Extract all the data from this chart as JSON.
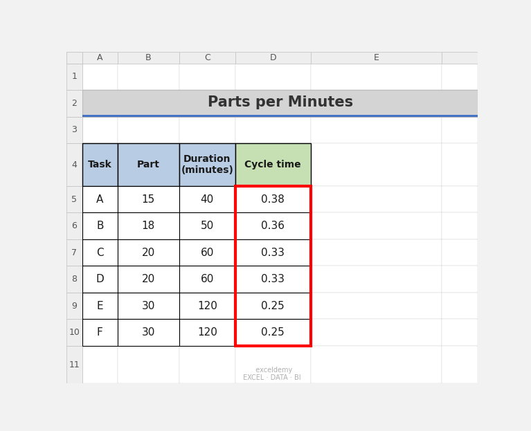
{
  "title": "Parts per Minutes",
  "headers": [
    "Task",
    "Part",
    "Duration\n(minutes)",
    "Cycle time"
  ],
  "rows": [
    [
      "A",
      "15",
      "40",
      "0.38"
    ],
    [
      "B",
      "18",
      "50",
      "0.36"
    ],
    [
      "C",
      "20",
      "60",
      "0.33"
    ],
    [
      "D",
      "20",
      "60",
      "0.33"
    ],
    [
      "E",
      "30",
      "120",
      "0.25"
    ],
    [
      "F",
      "30",
      "120",
      "0.25"
    ]
  ],
  "header_bg_blue": "#b8cce4",
  "header_bg_green": "#c6e0b4",
  "title_bg": "#d4d4d4",
  "red_border_color": "#ff0000",
  "col_header_bg": "#eeeeee",
  "col_header_border": "#c0c0c0",
  "cell_border": "#000000",
  "thin_border": "#d0d0d0",
  "blue_underline": "#4472c4",
  "watermark_color": "#b0b0b0",
  "text_dark": "#1a1a1a",
  "title_text": "#333333",
  "spreadsheet_bg": "#f2f2f2"
}
